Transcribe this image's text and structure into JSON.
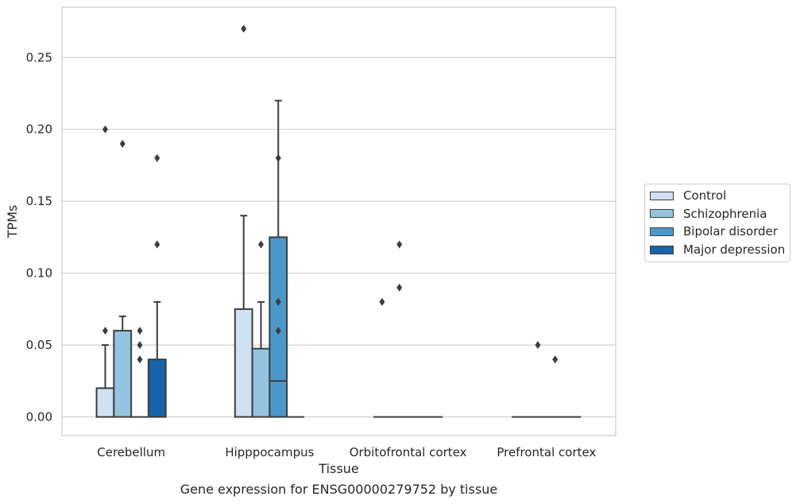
{
  "caption": "Gene expression for ENSG00000279752 by tissue",
  "chart_data": {
    "type": "box",
    "xlabel": "Tissue",
    "ylabel": "TPMs",
    "ylim": [
      -0.013,
      0.285
    ],
    "yticks": [
      0.0,
      0.05,
      0.1,
      0.15,
      0.2,
      0.25
    ],
    "ytick_labels": [
      "0.00",
      "0.05",
      "0.10",
      "0.15",
      "0.20",
      "0.25"
    ],
    "grid": true,
    "legend_position": "right",
    "categories": [
      "Cerebellum",
      "Hipppocampus",
      "Orbitofrontal cortex",
      "Prefrontal cortex"
    ],
    "series": [
      {
        "name": "Control",
        "color": "#d0e1f2",
        "boxes": [
          {
            "category": "Cerebellum",
            "q1": 0.0,
            "median": 0.0,
            "q3": 0.02,
            "whisker_low": 0.0,
            "whisker_high": 0.05,
            "outliers": [
              0.06,
              0.2
            ]
          },
          {
            "category": "Hipppocampus",
            "q1": 0.0,
            "median": 0.0,
            "q3": 0.075,
            "whisker_low": 0.0,
            "whisker_high": 0.14,
            "outliers": [
              0.27
            ]
          },
          {
            "category": "Orbitofrontal cortex",
            "q1": 0.0,
            "median": 0.0,
            "q3": 0.0,
            "whisker_low": 0.0,
            "whisker_high": 0.0,
            "outliers": [
              0.08
            ]
          },
          {
            "category": "Prefrontal cortex",
            "q1": 0.0,
            "median": 0.0,
            "q3": 0.0,
            "whisker_low": 0.0,
            "whisker_high": 0.0,
            "outliers": []
          }
        ]
      },
      {
        "name": "Schizophrenia",
        "color": "#94c4df",
        "boxes": [
          {
            "category": "Cerebellum",
            "q1": 0.0,
            "median": 0.0,
            "q3": 0.06,
            "whisker_low": 0.0,
            "whisker_high": 0.07,
            "outliers": [
              0.19
            ]
          },
          {
            "category": "Hipppocampus",
            "q1": 0.0,
            "median": 0.0,
            "q3": 0.0475,
            "whisker_low": 0.0,
            "whisker_high": 0.08,
            "outliers": [
              0.12
            ]
          },
          {
            "category": "Orbitofrontal cortex",
            "q1": 0.0,
            "median": 0.0,
            "q3": 0.0,
            "whisker_low": 0.0,
            "whisker_high": 0.0,
            "outliers": [
              0.09,
              0.12
            ]
          },
          {
            "category": "Prefrontal cortex",
            "q1": 0.0,
            "median": 0.0,
            "q3": 0.0,
            "whisker_low": 0.0,
            "whisker_high": 0.0,
            "outliers": [
              0.05
            ]
          }
        ]
      },
      {
        "name": "Bipolar disorder",
        "color": "#4a98c9",
        "boxes": [
          {
            "category": "Cerebellum",
            "q1": 0.0,
            "median": 0.0,
            "q3": 0.0,
            "whisker_low": 0.0,
            "whisker_high": 0.0,
            "outliers": [
              0.04,
              0.05,
              0.06
            ]
          },
          {
            "category": "Hipppocampus",
            "q1": 0.0,
            "median": 0.025,
            "q3": 0.125,
            "whisker_low": 0.0,
            "whisker_high": 0.22,
            "outliers": [
              0.06,
              0.08,
              0.18
            ]
          },
          {
            "category": "Orbitofrontal cortex",
            "q1": 0.0,
            "median": 0.0,
            "q3": 0.0,
            "whisker_low": 0.0,
            "whisker_high": 0.0,
            "outliers": []
          },
          {
            "category": "Prefrontal cortex",
            "q1": 0.0,
            "median": 0.0,
            "q3": 0.0,
            "whisker_low": 0.0,
            "whisker_high": 0.0,
            "outliers": [
              0.04
            ]
          }
        ]
      },
      {
        "name": "Major depression",
        "color": "#1764ab",
        "boxes": [
          {
            "category": "Cerebellum",
            "q1": 0.0,
            "median": 0.0,
            "q3": 0.04,
            "whisker_low": 0.0,
            "whisker_high": 0.08,
            "outliers": [
              0.12,
              0.18
            ]
          },
          {
            "category": "Hipppocampus",
            "q1": 0.0,
            "median": 0.0,
            "q3": 0.0,
            "whisker_low": 0.0,
            "whisker_high": 0.0,
            "outliers": []
          },
          {
            "category": "Orbitofrontal cortex",
            "q1": 0.0,
            "median": 0.0,
            "q3": 0.0,
            "whisker_low": 0.0,
            "whisker_high": 0.0,
            "outliers": []
          },
          {
            "category": "Prefrontal cortex",
            "q1": 0.0,
            "median": 0.0,
            "q3": 0.0,
            "whisker_low": 0.0,
            "whisker_high": 0.0,
            "outliers": []
          }
        ]
      }
    ]
  }
}
